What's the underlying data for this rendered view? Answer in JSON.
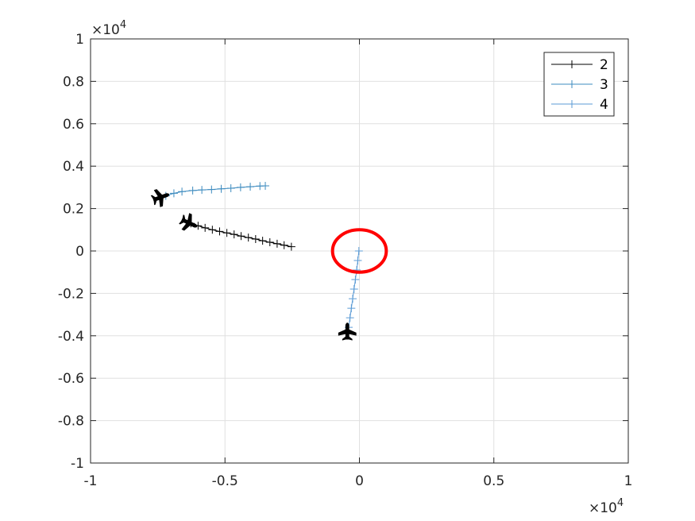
{
  "chart_data": {
    "type": "line",
    "title": "",
    "xlabel": "",
    "ylabel": "",
    "xlim": [
      -1,
      1
    ],
    "ylim": [
      -1,
      1
    ],
    "x_exponent_label": "×10",
    "x_exponent_power": "4",
    "y_exponent_label": "×10",
    "y_exponent_power": "4",
    "x_ticks": [
      {
        "value": -1,
        "label": "-1"
      },
      {
        "value": -0.5,
        "label": "-0.5"
      },
      {
        "value": 0,
        "label": "0"
      },
      {
        "value": 0.5,
        "label": "0.5"
      },
      {
        "value": 1,
        "label": "1"
      }
    ],
    "y_ticks": [
      {
        "value": -1,
        "label": "-1"
      },
      {
        "value": -0.8,
        "label": "-0.8"
      },
      {
        "value": -0.6,
        "label": "-0.6"
      },
      {
        "value": -0.4,
        "label": "-0.4"
      },
      {
        "value": -0.2,
        "label": "-0.2"
      },
      {
        "value": 0,
        "label": "0"
      },
      {
        "value": 0.2,
        "label": "0.2"
      },
      {
        "value": 0.4,
        "label": "0.4"
      },
      {
        "value": 0.6,
        "label": "0.6"
      },
      {
        "value": 0.8,
        "label": "0.8"
      },
      {
        "value": 1,
        "label": "1"
      }
    ],
    "grid": true,
    "legend_position": "top-right",
    "series": [
      {
        "name": "2",
        "color": "#000000",
        "marker": "plus",
        "x": [
          -0.627,
          -0.6,
          -0.574,
          -0.547,
          -0.52,
          -0.493,
          -0.466,
          -0.44,
          -0.413,
          -0.386,
          -0.36,
          -0.333,
          -0.306,
          -0.28,
          -0.253
        ],
        "y": [
          0.13,
          0.119,
          0.109,
          0.1,
          0.092,
          0.085,
          0.078,
          0.07,
          0.063,
          0.056,
          0.048,
          0.041,
          0.034,
          0.027,
          0.02
        ]
      },
      {
        "name": "3",
        "color": "#3d8bbf",
        "marker": "plus",
        "x": [
          -0.72,
          -0.69,
          -0.66,
          -0.62,
          -0.586,
          -0.55,
          -0.514,
          -0.478,
          -0.442,
          -0.406,
          -0.37,
          -0.35
        ],
        "y": [
          0.26,
          0.272,
          0.28,
          0.285,
          0.288,
          0.29,
          0.293,
          0.296,
          0.3,
          0.303,
          0.306,
          0.307
        ]
      },
      {
        "name": "4",
        "color": "#5b9bd5",
        "marker": "plus",
        "x": [
          -0.04,
          -0.035,
          -0.03,
          -0.025,
          -0.02,
          -0.015,
          -0.01,
          -0.006,
          -0.002
        ],
        "y": [
          -0.36,
          -0.315,
          -0.27,
          -0.225,
          -0.18,
          -0.135,
          -0.09,
          -0.045,
          0.0
        ]
      }
    ],
    "aircraft": [
      {
        "x": -0.735,
        "y": 0.255,
        "angle": -20
      },
      {
        "x": -0.63,
        "y": 0.13,
        "angle": 25
      },
      {
        "x": -0.045,
        "y": -0.375,
        "angle": -90
      }
    ],
    "highlight_circle": {
      "x": 0.0,
      "y": 0.0,
      "rx": 0.1,
      "ry": 0.1,
      "color": "#ff0000"
    },
    "legend": {
      "items": [
        "2",
        "3",
        "4"
      ]
    }
  }
}
